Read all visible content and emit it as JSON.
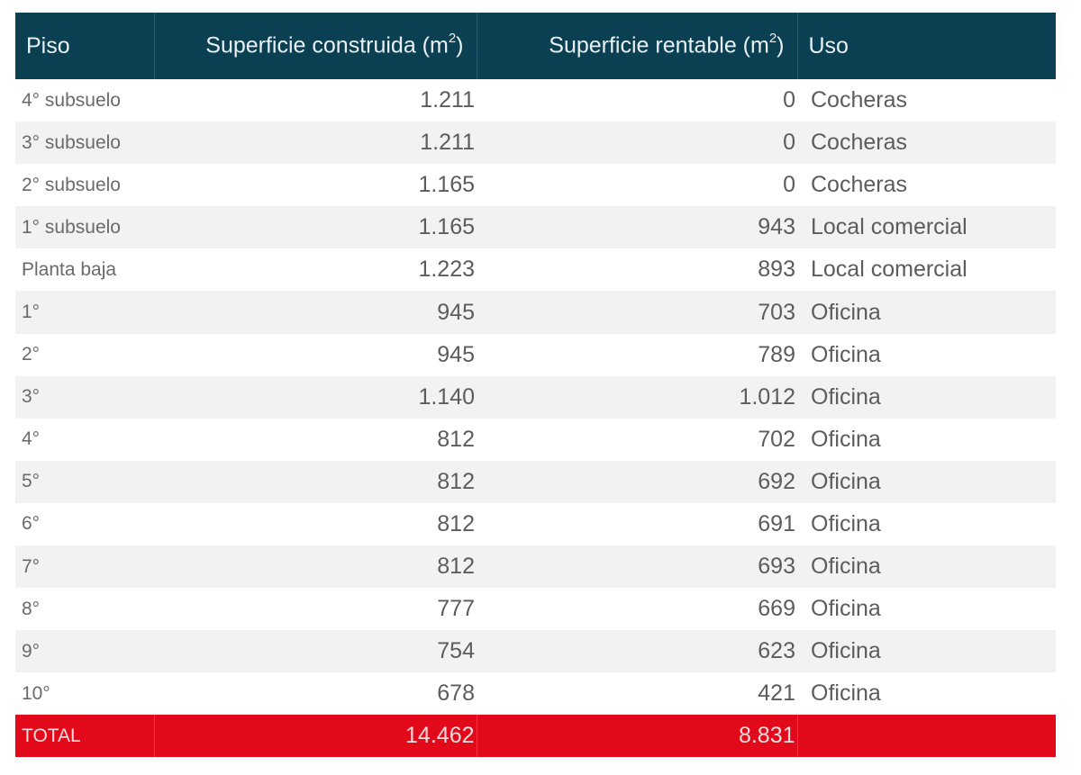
{
  "table": {
    "headers": {
      "piso": "Piso",
      "construida": "Superficie construida (m",
      "construida_sup": "2",
      "construida_close": ")",
      "rentable": "Superficie rentable (m",
      "rentable_sup": "2",
      "rentable_close": ")",
      "uso": "Uso"
    },
    "rows": [
      {
        "piso": "4° subsuelo",
        "construida": "1.211",
        "rentable": "0",
        "uso": "Cocheras"
      },
      {
        "piso": "3° subsuelo",
        "construida": "1.211",
        "rentable": "0",
        "uso": "Cocheras"
      },
      {
        "piso": "2° subsuelo",
        "construida": "1.165",
        "rentable": "0",
        "uso": "Cocheras"
      },
      {
        "piso": "1° subsuelo",
        "construida": "1.165",
        "rentable": "943",
        "uso": "Local comercial"
      },
      {
        "piso": "Planta baja",
        "construida": "1.223",
        "rentable": "893",
        "uso": "Local comercial"
      },
      {
        "piso": "1°",
        "construida": "945",
        "rentable": "703",
        "uso": "Oficina"
      },
      {
        "piso": "2°",
        "construida": "945",
        "rentable": "789",
        "uso": "Oficina"
      },
      {
        "piso": "3°",
        "construida": "1.140",
        "rentable": "1.012",
        "uso": "Oficina"
      },
      {
        "piso": "4°",
        "construida": "812",
        "rentable": "702",
        "uso": "Oficina"
      },
      {
        "piso": "5°",
        "construida": "812",
        "rentable": "692",
        "uso": "Oficina"
      },
      {
        "piso": "6°",
        "construida": "812",
        "rentable": "691",
        "uso": "Oficina"
      },
      {
        "piso": "7°",
        "construida": "812",
        "rentable": "693",
        "uso": "Oficina"
      },
      {
        "piso": "8°",
        "construida": "777",
        "rentable": "669",
        "uso": "Oficina"
      },
      {
        "piso": "9°",
        "construida": "754",
        "rentable": "623",
        "uso": "Oficina"
      },
      {
        "piso": "10°",
        "construida": "678",
        "rentable": "421",
        "uso": "Oficina"
      }
    ],
    "total": {
      "label": "TOTAL",
      "construida": "14.462",
      "rentable": "8.831",
      "uso": ""
    },
    "colors": {
      "header_bg": "#0b3f52",
      "total_bg": "#e2091a",
      "stripe_bg": "#f2f2f2"
    }
  }
}
